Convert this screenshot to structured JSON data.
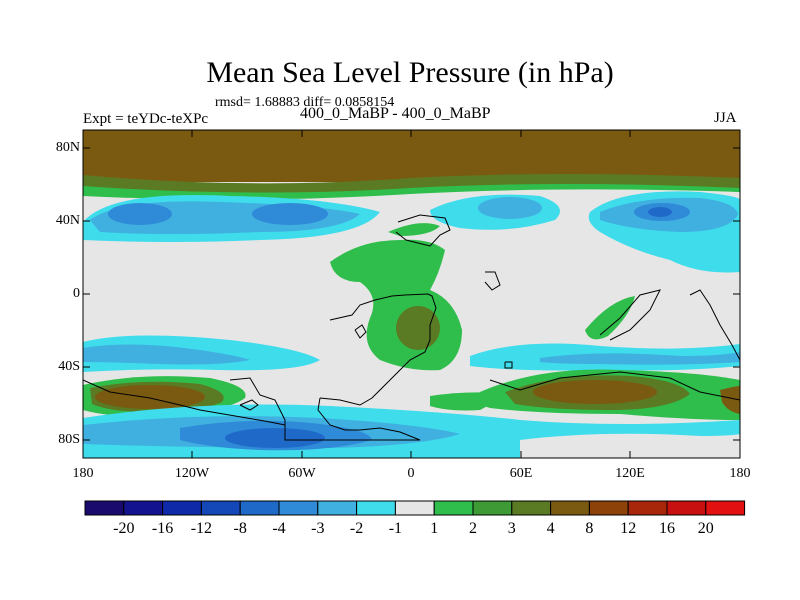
{
  "title": "Mean Sea Level Pressure (in hPa)",
  "stats": "rmsd= 1.68883 diff= 0.0858154",
  "left_label": "Expt = teYDc-teXPc",
  "center_label": "400_0_MaBP - 400_0_MaBP",
  "right_label": "JJA",
  "lat_ticks": [
    "80N",
    "40N",
    "0",
    "40S",
    "80S"
  ],
  "lon_ticks": [
    "180",
    "120W",
    "60W",
    "0",
    "60E",
    "120E",
    "180"
  ],
  "colorbar": {
    "labels": [
      "-20",
      "-16",
      "-12",
      "-8",
      "-4",
      "-3",
      "-2",
      "-1",
      "1",
      "2",
      "3",
      "4",
      "8",
      "12",
      "16",
      "20"
    ],
    "colors": [
      "#1a0a6e",
      "#13138f",
      "#0f2aa8",
      "#1448b8",
      "#1f6ac8",
      "#2f8ad8",
      "#3fb0e0",
      "#3fdcec",
      "#e6e6e6",
      "#2fbe4c",
      "#3e9a35",
      "#5a7a23",
      "#7a5a10",
      "#8c4208",
      "#a8260a",
      "#c81010",
      "#e21010"
    ]
  },
  "colors": {
    "land_outline": "#000000",
    "neutral": "#e6e6e6"
  }
}
